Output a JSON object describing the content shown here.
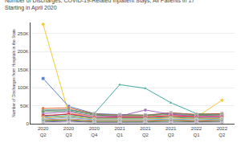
{
  "chart_data": {
    "type": "line",
    "title": "Number of Discharges, COVID-19-Related Inpatient Stays, All Patients in 17\nStarting in April 2020",
    "ylabel": "Number of Discharges from Hospitals in the State",
    "categories": [
      "2020\nQ2",
      "2020\nQ3",
      "2020\nQ4",
      "2021\nQ1",
      "2021\nQ2",
      "2021\nQ3",
      "2022\nQ1",
      "2022\nQ2"
    ],
    "ylim": [
      0,
      280000
    ],
    "yticks": [
      0,
      {
        "value": 50000,
        "label": "50K"
      },
      {
        "value": 100000,
        "label": "100K"
      },
      {
        "value": 150000,
        "label": "150K"
      },
      {
        "value": 200000,
        "label": "200K"
      },
      {
        "value": 250000,
        "label": "250K"
      }
    ],
    "grid": true,
    "series": [
      {
        "color": "#f5c518",
        "marker": "diamond",
        "values": [
          275000,
          28000,
          22000,
          20000,
          20000,
          22000,
          18000,
          65000
        ]
      },
      {
        "color": "#4472c4",
        "marker": "square",
        "values": [
          125000,
          48000,
          28000,
          25000,
          23000,
          30000,
          25000,
          28000
        ]
      },
      {
        "color": "#2aa198",
        "marker": "triangle-up",
        "values": [
          38000,
          38000,
          28000,
          108000,
          98000,
          58000,
          28000,
          26000
        ]
      },
      {
        "color": "#e05c1a",
        "marker": "circle",
        "values": [
          42000,
          44000,
          27000,
          24000,
          24000,
          30000,
          26000,
          28000
        ]
      },
      {
        "color": "#808080",
        "marker": "square",
        "values": [
          36000,
          40000,
          26000,
          24000,
          24000,
          28000,
          25000,
          26000
        ]
      },
      {
        "color": "#4e9a4e",
        "marker": "diamond",
        "values": [
          33000,
          36000,
          24000,
          22000,
          22000,
          26000,
          23000,
          24000
        ]
      },
      {
        "color": "#9b59b6",
        "marker": "circle",
        "values": [
          28000,
          33000,
          21000,
          21000,
          38000,
          26000,
          20000,
          22000
        ]
      },
      {
        "color": "#e91e8c",
        "marker": "diamond",
        "values": [
          20000,
          28000,
          17000,
          19000,
          19000,
          23000,
          20000,
          20000
        ]
      },
      {
        "color": "#c0392b",
        "marker": "square",
        "values": [
          23000,
          26000,
          17000,
          17000,
          17000,
          20000,
          17000,
          18000
        ]
      },
      {
        "color": "#1abc9c",
        "marker": "triangle-up",
        "values": [
          19000,
          23000,
          15000,
          15000,
          15000,
          18000,
          15000,
          16000
        ]
      },
      {
        "color": "#f39c12",
        "marker": "circle",
        "values": [
          16000,
          20000,
          13000,
          13000,
          13000,
          16000,
          13000,
          15000
        ]
      },
      {
        "color": "#5dade2",
        "marker": "diamond",
        "values": [
          13000,
          18000,
          11000,
          11000,
          11000,
          13000,
          11000,
          13000
        ]
      },
      {
        "color": "#a0a0a0",
        "marker": "square",
        "values": [
          11000,
          14000,
          9000,
          9000,
          9000,
          11000,
          9000,
          11000
        ]
      },
      {
        "color": "#d35400",
        "marker": "triangle-up",
        "values": [
          9000,
          11000,
          7000,
          7000,
          7000,
          9000,
          7000,
          9000
        ]
      },
      {
        "color": "#27ae60",
        "marker": "circle",
        "values": [
          7000,
          9000,
          5000,
          5000,
          5000,
          7000,
          5000,
          7000
        ]
      },
      {
        "color": "#7d3c98",
        "marker": "diamond",
        "values": [
          4500,
          7000,
          3500,
          3500,
          3500,
          5000,
          3500,
          4500
        ]
      },
      {
        "color": "#c8c8c8",
        "marker": "square",
        "values": [
          2500,
          4000,
          1800,
          1800,
          1800,
          2500,
          1800,
          2500
        ]
      }
    ]
  }
}
